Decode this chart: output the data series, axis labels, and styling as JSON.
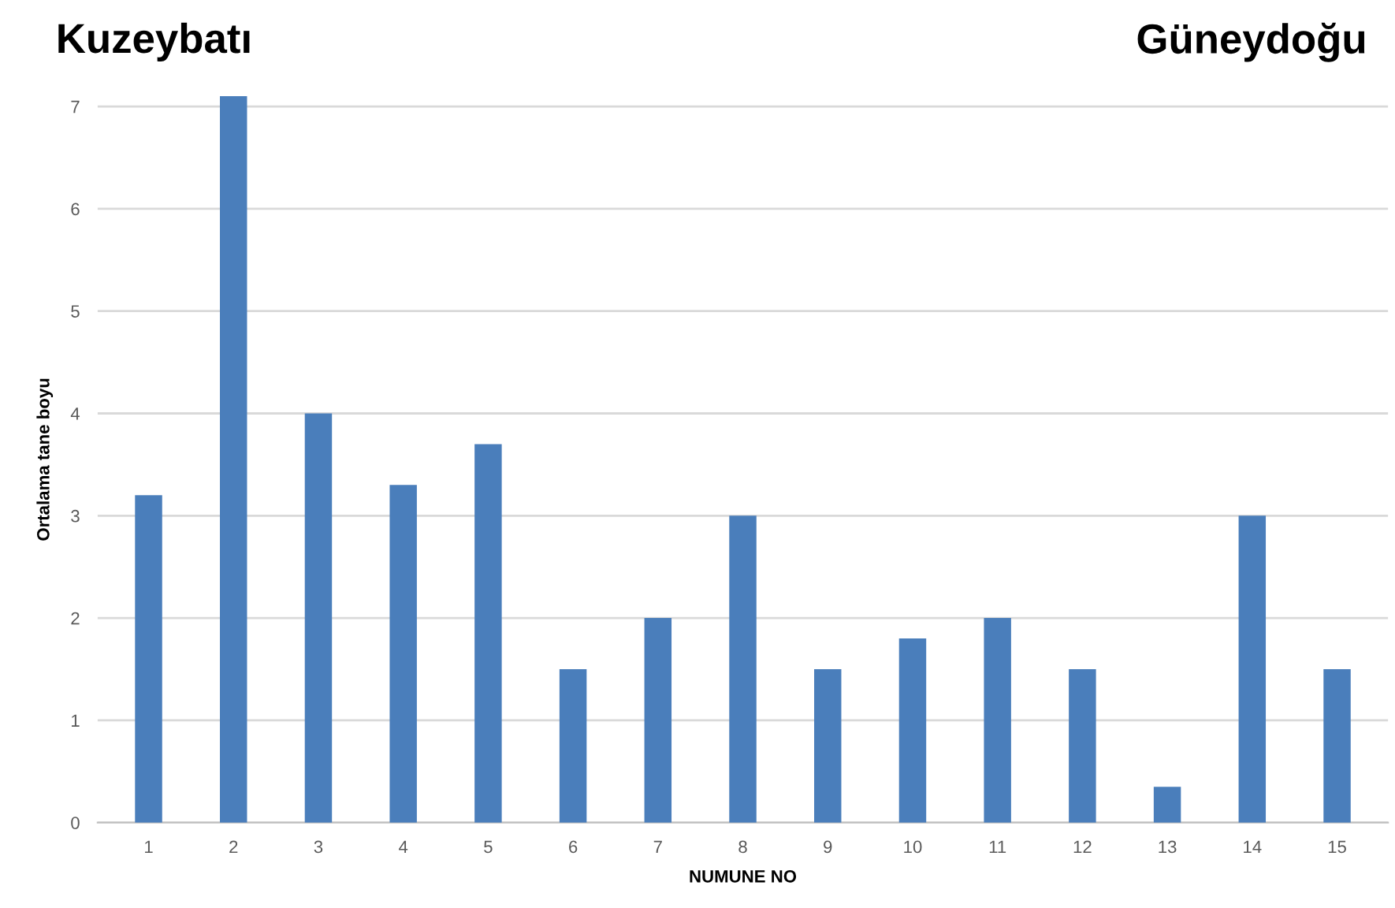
{
  "chart_data": {
    "type": "bar",
    "xlabel": "NUMUNE NO",
    "ylabel": "Ortalama tane boyu",
    "annotations": [
      "Kuzeybatı",
      "Güneydoğu"
    ],
    "categories": [
      "1",
      "2",
      "3",
      "4",
      "5",
      "6",
      "7",
      "8",
      "9",
      "10",
      "11",
      "12",
      "13",
      "14",
      "15"
    ],
    "values": [
      3.2,
      7.1,
      4,
      3.3,
      3.7,
      1.5,
      2,
      3,
      1.5,
      1.8,
      2,
      1.5,
      0.35,
      3,
      1.5
    ],
    "color": "#4a7ebb",
    "ylim": [
      0,
      7.1
    ],
    "yticks": [
      0,
      1,
      2,
      3,
      4,
      5,
      6,
      7
    ],
    "grid": "y",
    "legend": false
  }
}
